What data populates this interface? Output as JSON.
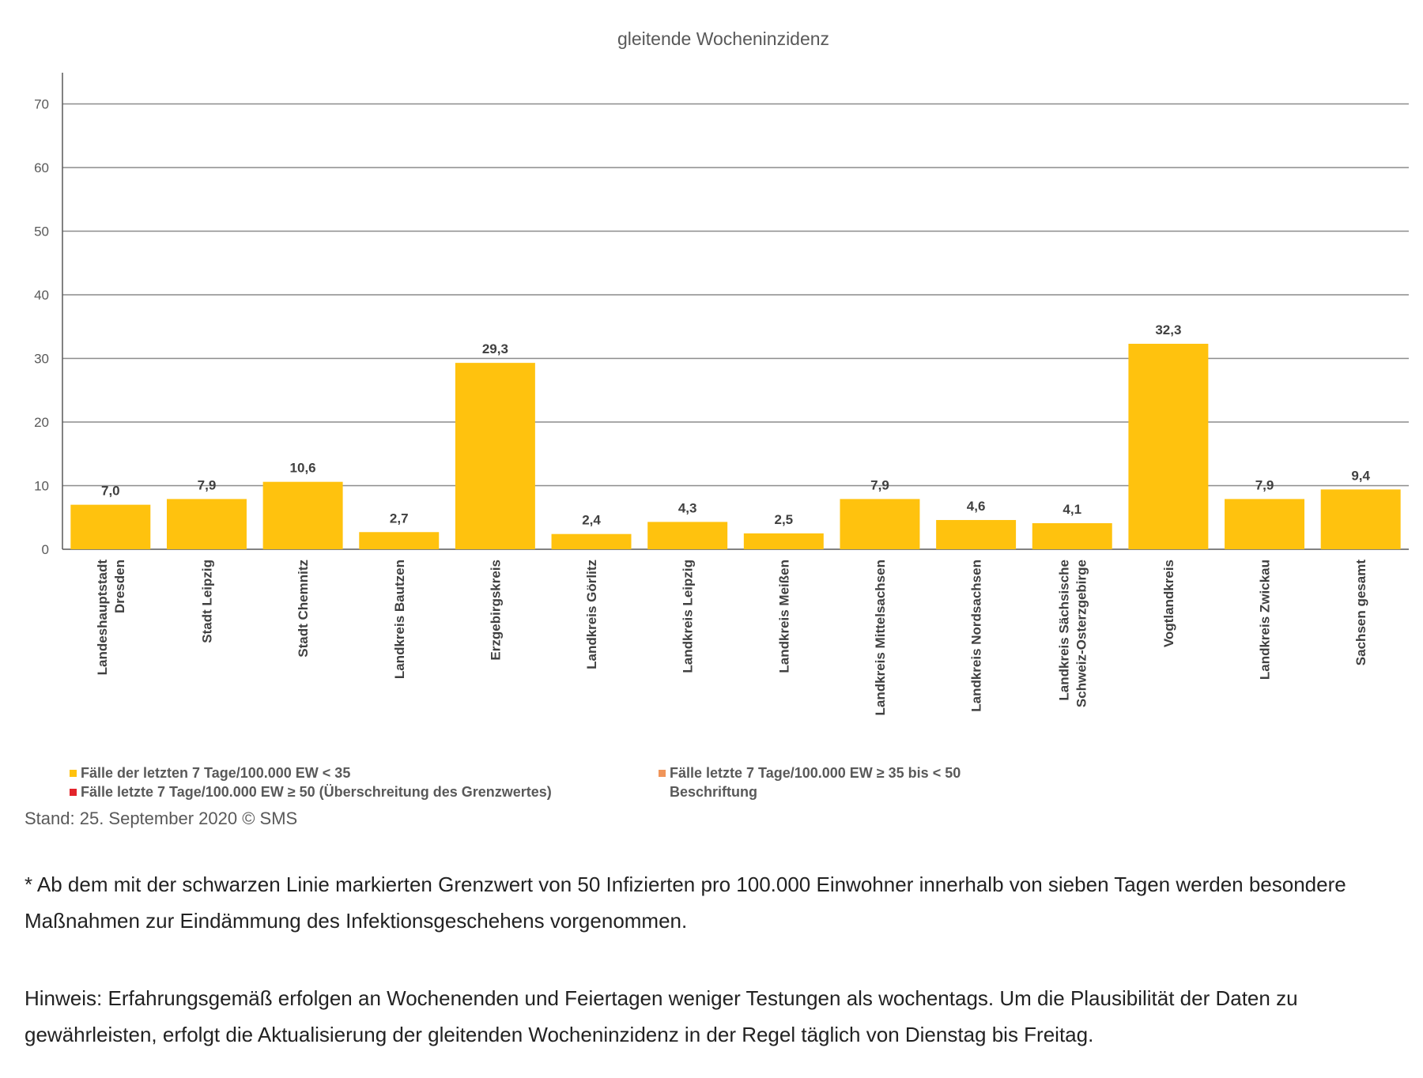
{
  "chart_data": {
    "type": "bar",
    "title": "gleitende Wocheninzidenz",
    "categories": [
      [
        "Landeshauptstadt",
        "Dresden"
      ],
      [
        "Stadt Leipzig"
      ],
      [
        "Stadt Chemnitz"
      ],
      [
        "Landkreis Bautzen"
      ],
      [
        "Erzgebirgskreis"
      ],
      [
        "Landkreis Görlitz"
      ],
      [
        "Landkreis Leipzig"
      ],
      [
        "Landkreis Meißen"
      ],
      [
        "Landkreis Mittelsachsen"
      ],
      [
        "Landkreis Nordsachsen"
      ],
      [
        "Landkreis Sächsische",
        "Schweiz-Osterzgebirge"
      ],
      [
        "Vogtlandkreis"
      ],
      [
        "Landkreis Zwickau"
      ],
      [
        "Sachsen gesamt"
      ]
    ],
    "values": [
      7.0,
      7.9,
      10.6,
      2.7,
      29.3,
      2.4,
      4.3,
      2.5,
      7.9,
      4.6,
      4.1,
      32.3,
      7.9,
      9.4
    ],
    "value_labels": [
      "7,0",
      "7,9",
      "10,6",
      "2,7",
      "29,3",
      "2,4",
      "4,3",
      "2,5",
      "7,9",
      "4,6",
      "4,1",
      "32,3",
      "7,9",
      "9,4"
    ],
    "yticks": [
      "0",
      "10",
      "20",
      "30",
      "40",
      "50",
      "60",
      "70"
    ],
    "ylim": [
      0,
      75
    ],
    "grid": true,
    "bar_color": "#FFC20E",
    "legend": [
      {
        "label": "Fälle der letzten 7 Tage/100.000 EW < 35",
        "color": "#FFC20E"
      },
      {
        "label": "Fälle letzte 7 Tage/100.000 EW ≥ 50 (Überschreitung des Grenzwertes)",
        "color": "#E3242B"
      },
      {
        "label": "Fälle letzte 7 Tage/100.000 EW ≥ 35 bis < 50",
        "color": "#F0955A"
      },
      {
        "label": "Beschriftung",
        "color": ""
      }
    ]
  },
  "footer": {
    "stand": "Stand: 25. September 2020  © SMS"
  },
  "notes": {
    "note1": "* Ab dem mit der schwarzen Linie markierten Grenzwert von 50 Infizierten pro 100.000 Einwohner innerhalb von sieben Tagen werden besondere Maßnahmen zur Eindämmung des Infektionsgeschehens vorgenommen.",
    "note2": "Hinweis: Erfahrungsgemäß erfolgen an Wochenenden und Feiertagen weniger Testungen als wochentags. Um die Plausibilität der Daten zu gewährleisten, erfolgt die Aktualisierung der gleitenden Wocheninzidenz in der Regel täglich von Dienstag bis Freitag."
  }
}
